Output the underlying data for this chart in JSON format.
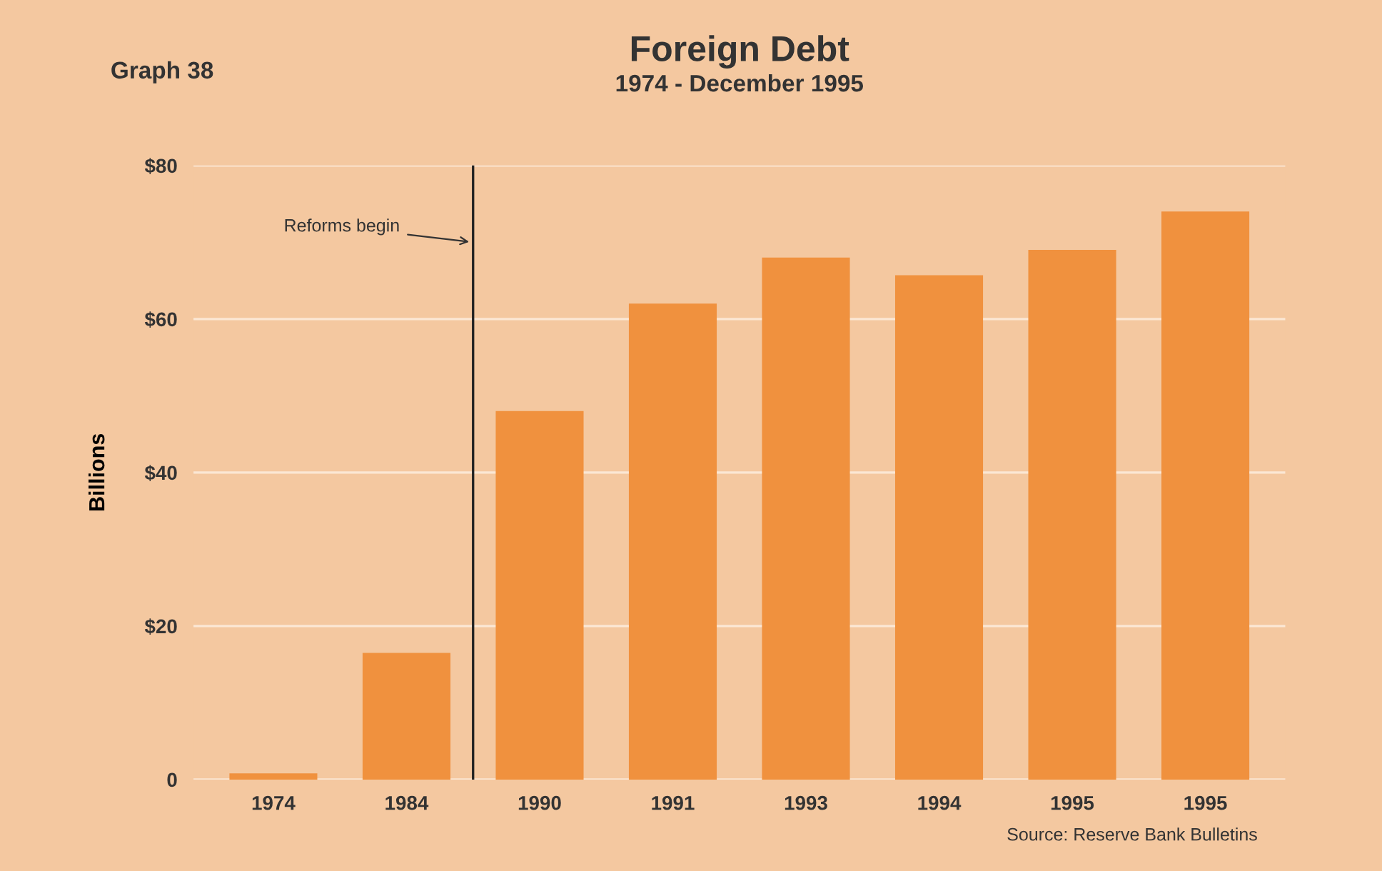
{
  "chart_data": {
    "type": "bar",
    "title": "Foreign Debt",
    "subtitle": "1974 - December 1995",
    "ylabel": "Billions",
    "categories": [
      "1974",
      "1984",
      "1990",
      "1991",
      "1993",
      "1994",
      "1995",
      "1995"
    ],
    "values": [
      0.8,
      16.5,
      48,
      62,
      68,
      65.7,
      69,
      74
    ],
    "color": "#f0913e",
    "ylim": [
      0,
      80
    ],
    "yticks": [
      0,
      {
        "value": 20,
        "label": "$20"
      },
      {
        "value": 40,
        "label": "$40"
      },
      {
        "value": 60,
        "label": "$60"
      },
      {
        "value": 80,
        "label": "$80"
      }
    ],
    "grid": "y",
    "ref_lines": [
      {
        "axis": "x",
        "value": "1984",
        "label": "Reforms begin",
        "color": "#222222"
      }
    ],
    "annotations": [
      "Graph 38",
      "Source: Reserve Bank Bulletins"
    ]
  }
}
